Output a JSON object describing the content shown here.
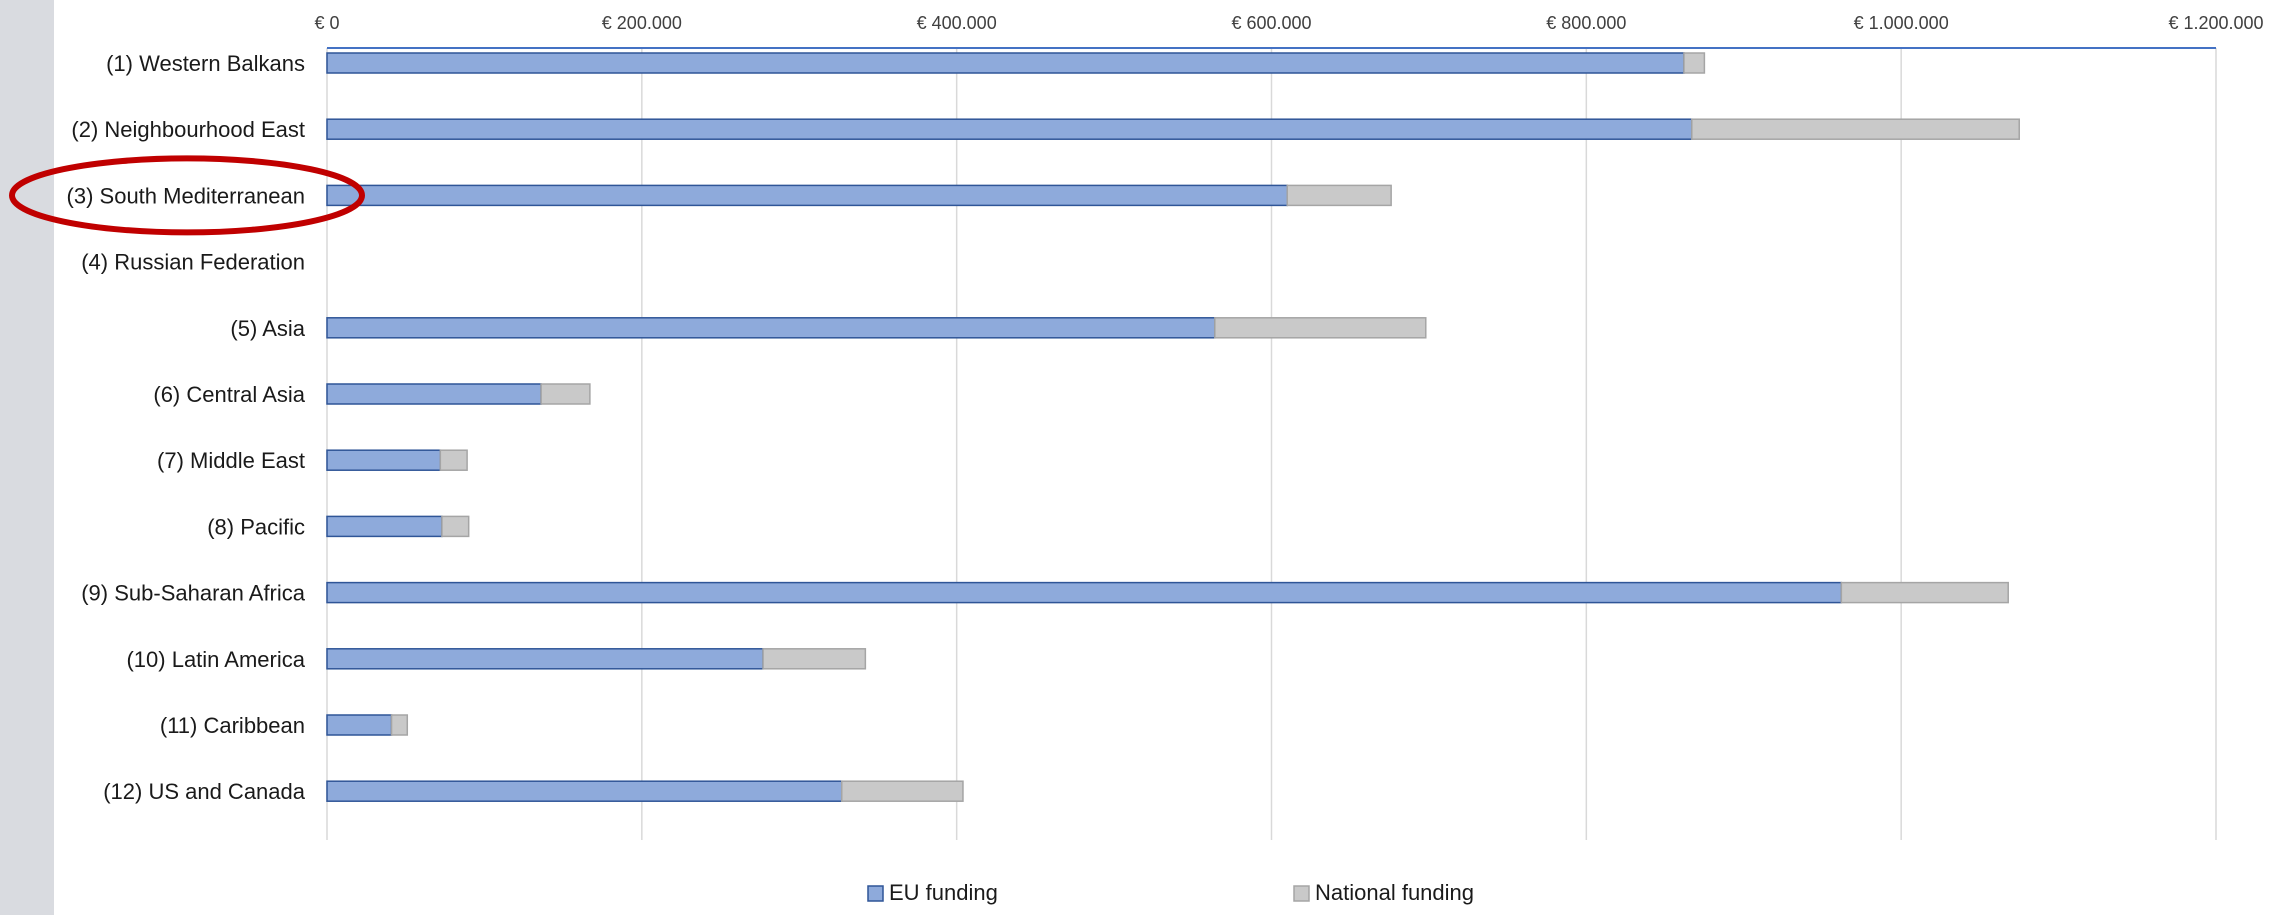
{
  "chart_data": {
    "type": "bar",
    "orientation": "horizontal",
    "stacked": true,
    "title": "",
    "xlabel": "",
    "ylabel": "",
    "xlim": [
      0,
      1200000
    ],
    "x_ticks": [
      0,
      200000,
      400000,
      600000,
      800000,
      1000000,
      1200000
    ],
    "x_tick_labels": [
      "€ 0",
      "€ 200.000",
      "€ 400.000",
      "€ 600.000",
      "€ 800.000",
      "€ 1.000.000",
      "€ 1.200.000"
    ],
    "x_axis_position": "top",
    "grid": true,
    "legend_position": "bottom",
    "categories": [
      "(1) Western Balkans",
      "(2) Neighbourhood East",
      "(3) South Mediterranean",
      "(4) Russian Federation",
      "(5) Asia",
      "(6) Central Asia",
      "(7) Middle East",
      "(8) Pacific",
      "(9) Sub-Saharan Africa",
      "(10) Latin America",
      "(11) Caribbean",
      "(12) US and Canada"
    ],
    "series": [
      {
        "name": "EU funding",
        "color": "#8eaadb",
        "border": "#2f5597",
        "values": [
          862000,
          867000,
          610000,
          0,
          564000,
          136000,
          72000,
          73000,
          962000,
          277000,
          41000,
          327000
        ]
      },
      {
        "name": "National funding",
        "color": "#c9c9c9",
        "border": "#a5a5a5",
        "values": [
          13000,
          208000,
          66000,
          0,
          134000,
          31000,
          17000,
          17000,
          106000,
          65000,
          10000,
          77000
        ]
      }
    ],
    "annotations": [
      {
        "type": "ellipse",
        "target_category": "(3) South Mediterranean",
        "color": "#c00000"
      }
    ]
  }
}
